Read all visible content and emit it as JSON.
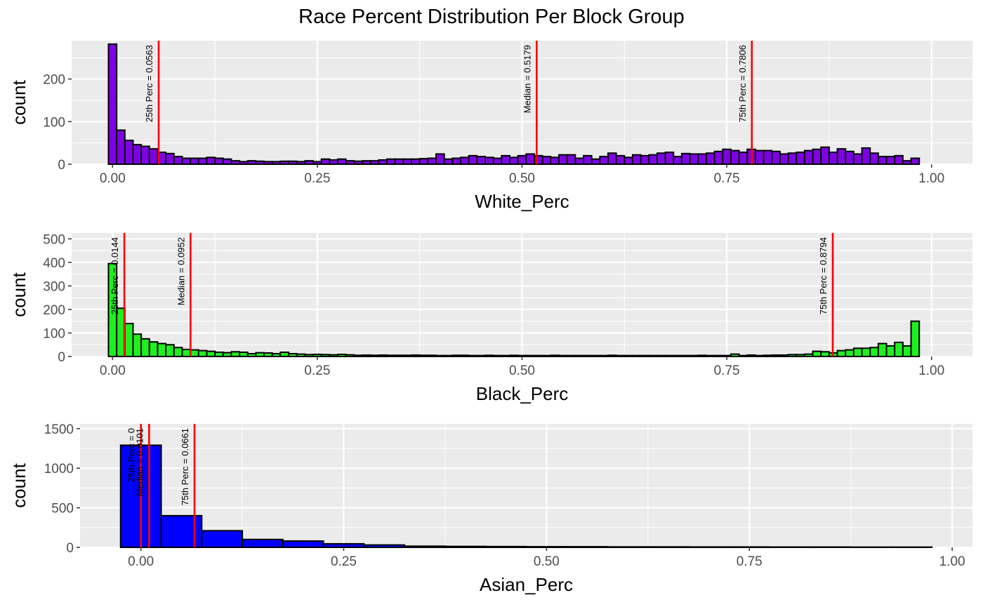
{
  "title": "Race Percent Distribution Per Block Group",
  "chart_data": [
    {
      "type": "histogram",
      "xlabel": "White_Perc",
      "ylabel": "count",
      "fill": "#8000e6",
      "xlim": [
        -0.05,
        1.05
      ],
      "ylim": [
        0,
        290
      ],
      "x_ticks": [
        0,
        0.25,
        0.5,
        0.75,
        1
      ],
      "x_tick_labels": [
        "0.00",
        "0.25",
        "0.50",
        "0.75",
        "1.00"
      ],
      "y_ticks": [
        0,
        100,
        200
      ],
      "y_tick_labels": [
        "0",
        "100",
        "200"
      ],
      "bin_start": -0.005,
      "binwidth": 0.01,
      "counts": [
        282,
        80,
        56,
        46,
        42,
        36,
        28,
        25,
        18,
        14,
        14,
        14,
        16,
        14,
        12,
        8,
        6,
        8,
        7,
        6,
        6,
        7,
        7,
        6,
        8,
        6,
        12,
        10,
        12,
        8,
        7,
        8,
        8,
        10,
        12,
        12,
        12,
        12,
        13,
        14,
        24,
        12,
        14,
        16,
        20,
        18,
        16,
        14,
        20,
        16,
        20,
        24,
        20,
        18,
        16,
        22,
        22,
        14,
        20,
        12,
        18,
        26,
        20,
        16,
        22,
        20,
        22,
        26,
        28,
        18,
        25,
        24,
        24,
        26,
        30,
        35,
        32,
        28,
        35,
        32,
        32,
        30,
        24,
        26,
        28,
        32,
        35,
        40,
        28,
        36,
        30,
        24,
        38,
        26,
        18,
        18,
        20,
        8,
        14
      ],
      "vlines": [
        {
          "x": 0.0563,
          "label": "25th Perc = 0.0563"
        },
        {
          "x": 0.5179,
          "label": "Median = 0.5179"
        },
        {
          "x": 0.7806,
          "label": "75th Perc = 0.7806"
        }
      ]
    },
    {
      "type": "histogram",
      "xlabel": "Black_Perc",
      "ylabel": "count",
      "fill": "#1ef01e",
      "xlim": [
        -0.05,
        1.05
      ],
      "ylim": [
        0,
        525
      ],
      "x_ticks": [
        0,
        0.25,
        0.5,
        0.75,
        1
      ],
      "x_tick_labels": [
        "0.00",
        "0.25",
        "0.50",
        "0.75",
        "1.00"
      ],
      "y_ticks": [
        0,
        100,
        200,
        300,
        400,
        500
      ],
      "y_tick_labels": [
        "0",
        "100",
        "200",
        "300",
        "400",
        "500"
      ],
      "bin_start": -0.005,
      "binwidth": 0.01,
      "counts": [
        395,
        205,
        140,
        95,
        75,
        62,
        55,
        50,
        38,
        30,
        28,
        25,
        22,
        18,
        16,
        20,
        18,
        12,
        16,
        15,
        12,
        18,
        12,
        10,
        8,
        9,
        8,
        7,
        9,
        7,
        5,
        6,
        5,
        6,
        5,
        5,
        5,
        6,
        5,
        5,
        4,
        4,
        5,
        5,
        4,
        4,
        5,
        4,
        4,
        5,
        4,
        4,
        4,
        4,
        5,
        4,
        4,
        4,
        4,
        4,
        4,
        5,
        4,
        4,
        4,
        4,
        4,
        4,
        4,
        4,
        4,
        4,
        5,
        4,
        4,
        4,
        10,
        4,
        6,
        4,
        5,
        6,
        6,
        8,
        8,
        10,
        22,
        20,
        15,
        25,
        28,
        35,
        35,
        38,
        55,
        45,
        60,
        45,
        150
      ],
      "vlines": [
        {
          "x": 0.0144,
          "label": "25th Perc = 0.0144"
        },
        {
          "x": 0.0952,
          "label": "Median = 0.0952"
        },
        {
          "x": 0.8794,
          "label": "75th Perc = 0.8794"
        }
      ]
    },
    {
      "type": "histogram",
      "xlabel": "Asian_Perc",
      "ylabel": "count",
      "fill": "#0000ff",
      "xlim": [
        -0.075,
        1.025
      ],
      "ylim": [
        0,
        1560
      ],
      "x_ticks": [
        0,
        0.25,
        0.5,
        0.75,
        1
      ],
      "x_tick_labels": [
        "0.00",
        "0.25",
        "0.50",
        "0.75",
        "1.00"
      ],
      "y_ticks": [
        0,
        500,
        1000,
        1500
      ],
      "y_tick_labels": [
        "0",
        "500",
        "1000",
        "1500"
      ],
      "bin_start": -0.025,
      "binwidth": 0.05,
      "counts": [
        1290,
        400,
        210,
        100,
        80,
        45,
        30,
        15,
        12,
        10,
        8,
        8,
        6,
        6,
        5,
        5,
        4,
        4,
        3,
        3
      ],
      "vlines": [
        {
          "x": 0,
          "label": "25th Perc = 0"
        },
        {
          "x": 0.0101,
          "label": "Median = 0.0101"
        },
        {
          "x": 0.0661,
          "label": "75th Perc = 0.0661"
        }
      ]
    }
  ]
}
